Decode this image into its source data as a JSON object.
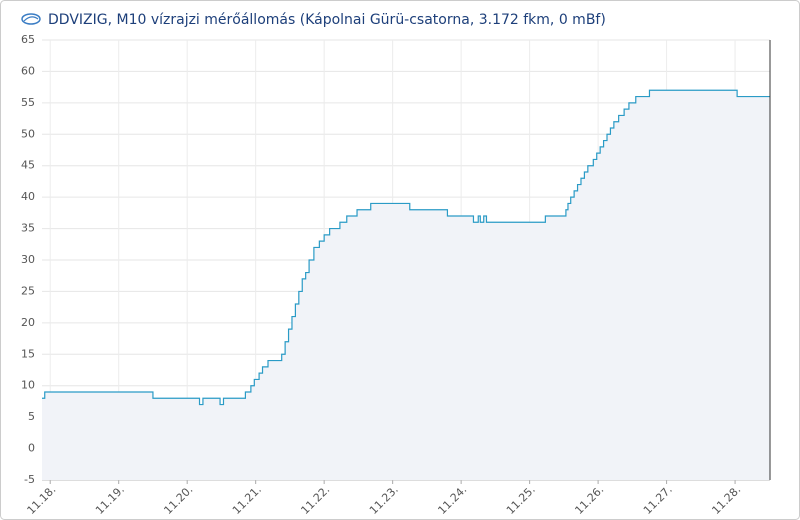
{
  "chart_data": {
    "type": "step-area",
    "title": "DDVIZIG, M10 vízrajzi mérőállomás (Kápolnai Gürü-csatorna, 3.172 fkm, 0 mBf)",
    "color": "#2a9bc6",
    "fill": "#f1f3f8",
    "grid": true,
    "x": [
      -0.12,
      -0.08,
      1.5,
      2.18,
      2.23,
      2.48,
      2.53,
      2.85,
      2.93,
      2.98,
      3.05,
      3.1,
      3.18,
      3.38,
      3.43,
      3.48,
      3.53,
      3.58,
      3.63,
      3.68,
      3.73,
      3.78,
      3.85,
      3.93,
      4.0,
      4.08,
      4.23,
      4.33,
      4.48,
      4.68,
      5.25,
      5.8,
      6.18,
      6.25,
      6.28,
      6.33,
      6.37,
      7.23,
      7.53,
      7.56,
      7.6,
      7.65,
      7.7,
      7.75,
      7.8,
      7.85,
      7.93,
      7.98,
      8.03,
      8.08,
      8.13,
      8.18,
      8.23,
      8.3,
      8.38,
      8.45,
      8.55,
      8.75,
      10.03,
      10.51
    ],
    "values": [
      8,
      9,
      8,
      7,
      8,
      7,
      8,
      9,
      10,
      11,
      12,
      13,
      14,
      15,
      17,
      19,
      21,
      23,
      25,
      27,
      28,
      30,
      32,
      33,
      34,
      35,
      36,
      37,
      38,
      39,
      38,
      37,
      36,
      37,
      36,
      37,
      36,
      37,
      38,
      39,
      40,
      41,
      42,
      43,
      44,
      45,
      46,
      47,
      48,
      49,
      50,
      51,
      52,
      53,
      54,
      55,
      56,
      57,
      56,
      56
    ],
    "xlim": [
      -0.12,
      10.51
    ],
    "xticks": [
      {
        "value": 0,
        "label": "11.18."
      },
      {
        "value": 1,
        "label": "11.19."
      },
      {
        "value": 2,
        "label": "11.20."
      },
      {
        "value": 3,
        "label": "11.21."
      },
      {
        "value": 4,
        "label": "11.22."
      },
      {
        "value": 5,
        "label": "11.23."
      },
      {
        "value": 6,
        "label": "11.24."
      },
      {
        "value": 7,
        "label": "11.25."
      },
      {
        "value": 8,
        "label": "11.26."
      },
      {
        "value": 9,
        "label": "11.27."
      },
      {
        "value": 10,
        "label": "11.28."
      }
    ],
    "ylim": [
      -5,
      65
    ],
    "yticks": [
      -5,
      0,
      5,
      10,
      15,
      20,
      25,
      30,
      35,
      40,
      45,
      50,
      55,
      60,
      65
    ]
  }
}
